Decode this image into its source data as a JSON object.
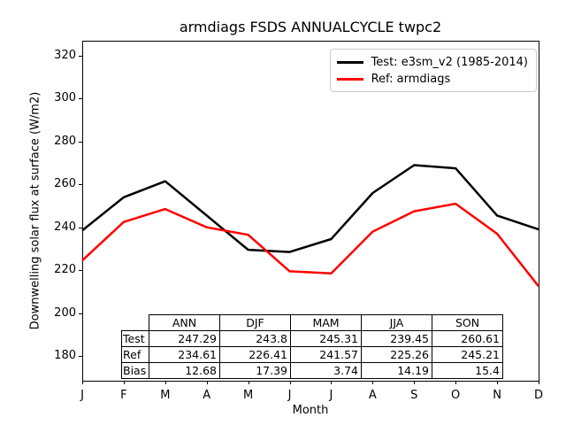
{
  "chart_data": {
    "type": "line",
    "title": "armdiags FSDS ANNUALCYCLE twpc2",
    "xlabel": "Month",
    "ylabel": "Downwelling solar flux at surface (W/m2)",
    "x_tick_labels": [
      "J",
      "F",
      "M",
      "A",
      "M",
      "J",
      "J",
      "A",
      "S",
      "O",
      "N",
      "D"
    ],
    "y_ticks": [
      320,
      300,
      280,
      260,
      240,
      220,
      200,
      180
    ],
    "ylim": [
      168,
      327
    ],
    "grid": false,
    "legend_position": "upper right",
    "series": [
      {
        "name": "Test: e3sm_v2 (1985-2014)",
        "color": "#000000",
        "values": [
          238.5,
          254.0,
          261.5,
          245.5,
          229.5,
          228.5,
          234.5,
          256.0,
          269.0,
          267.5,
          245.5,
          239.0
        ]
      },
      {
        "name": "Ref: armdiags",
        "color": "#ff0000",
        "values": [
          224.5,
          242.5,
          248.5,
          240.0,
          236.5,
          219.5,
          218.5,
          238.0,
          247.5,
          251.0,
          237.0,
          212.5
        ]
      }
    ],
    "stats_table": {
      "col_headers": [
        "ANN",
        "DJF",
        "MAM",
        "JJA",
        "SON"
      ],
      "rows": [
        {
          "label": "Test",
          "values": [
            "247.29",
            "243.8",
            "245.31",
            "239.45",
            "260.61"
          ]
        },
        {
          "label": "Ref",
          "values": [
            "234.61",
            "226.41",
            "241.57",
            "225.26",
            "245.21"
          ]
        },
        {
          "label": "Bias",
          "values": [
            "12.68",
            "17.39",
            "3.74",
            "14.19",
            "15.4"
          ]
        }
      ]
    }
  }
}
